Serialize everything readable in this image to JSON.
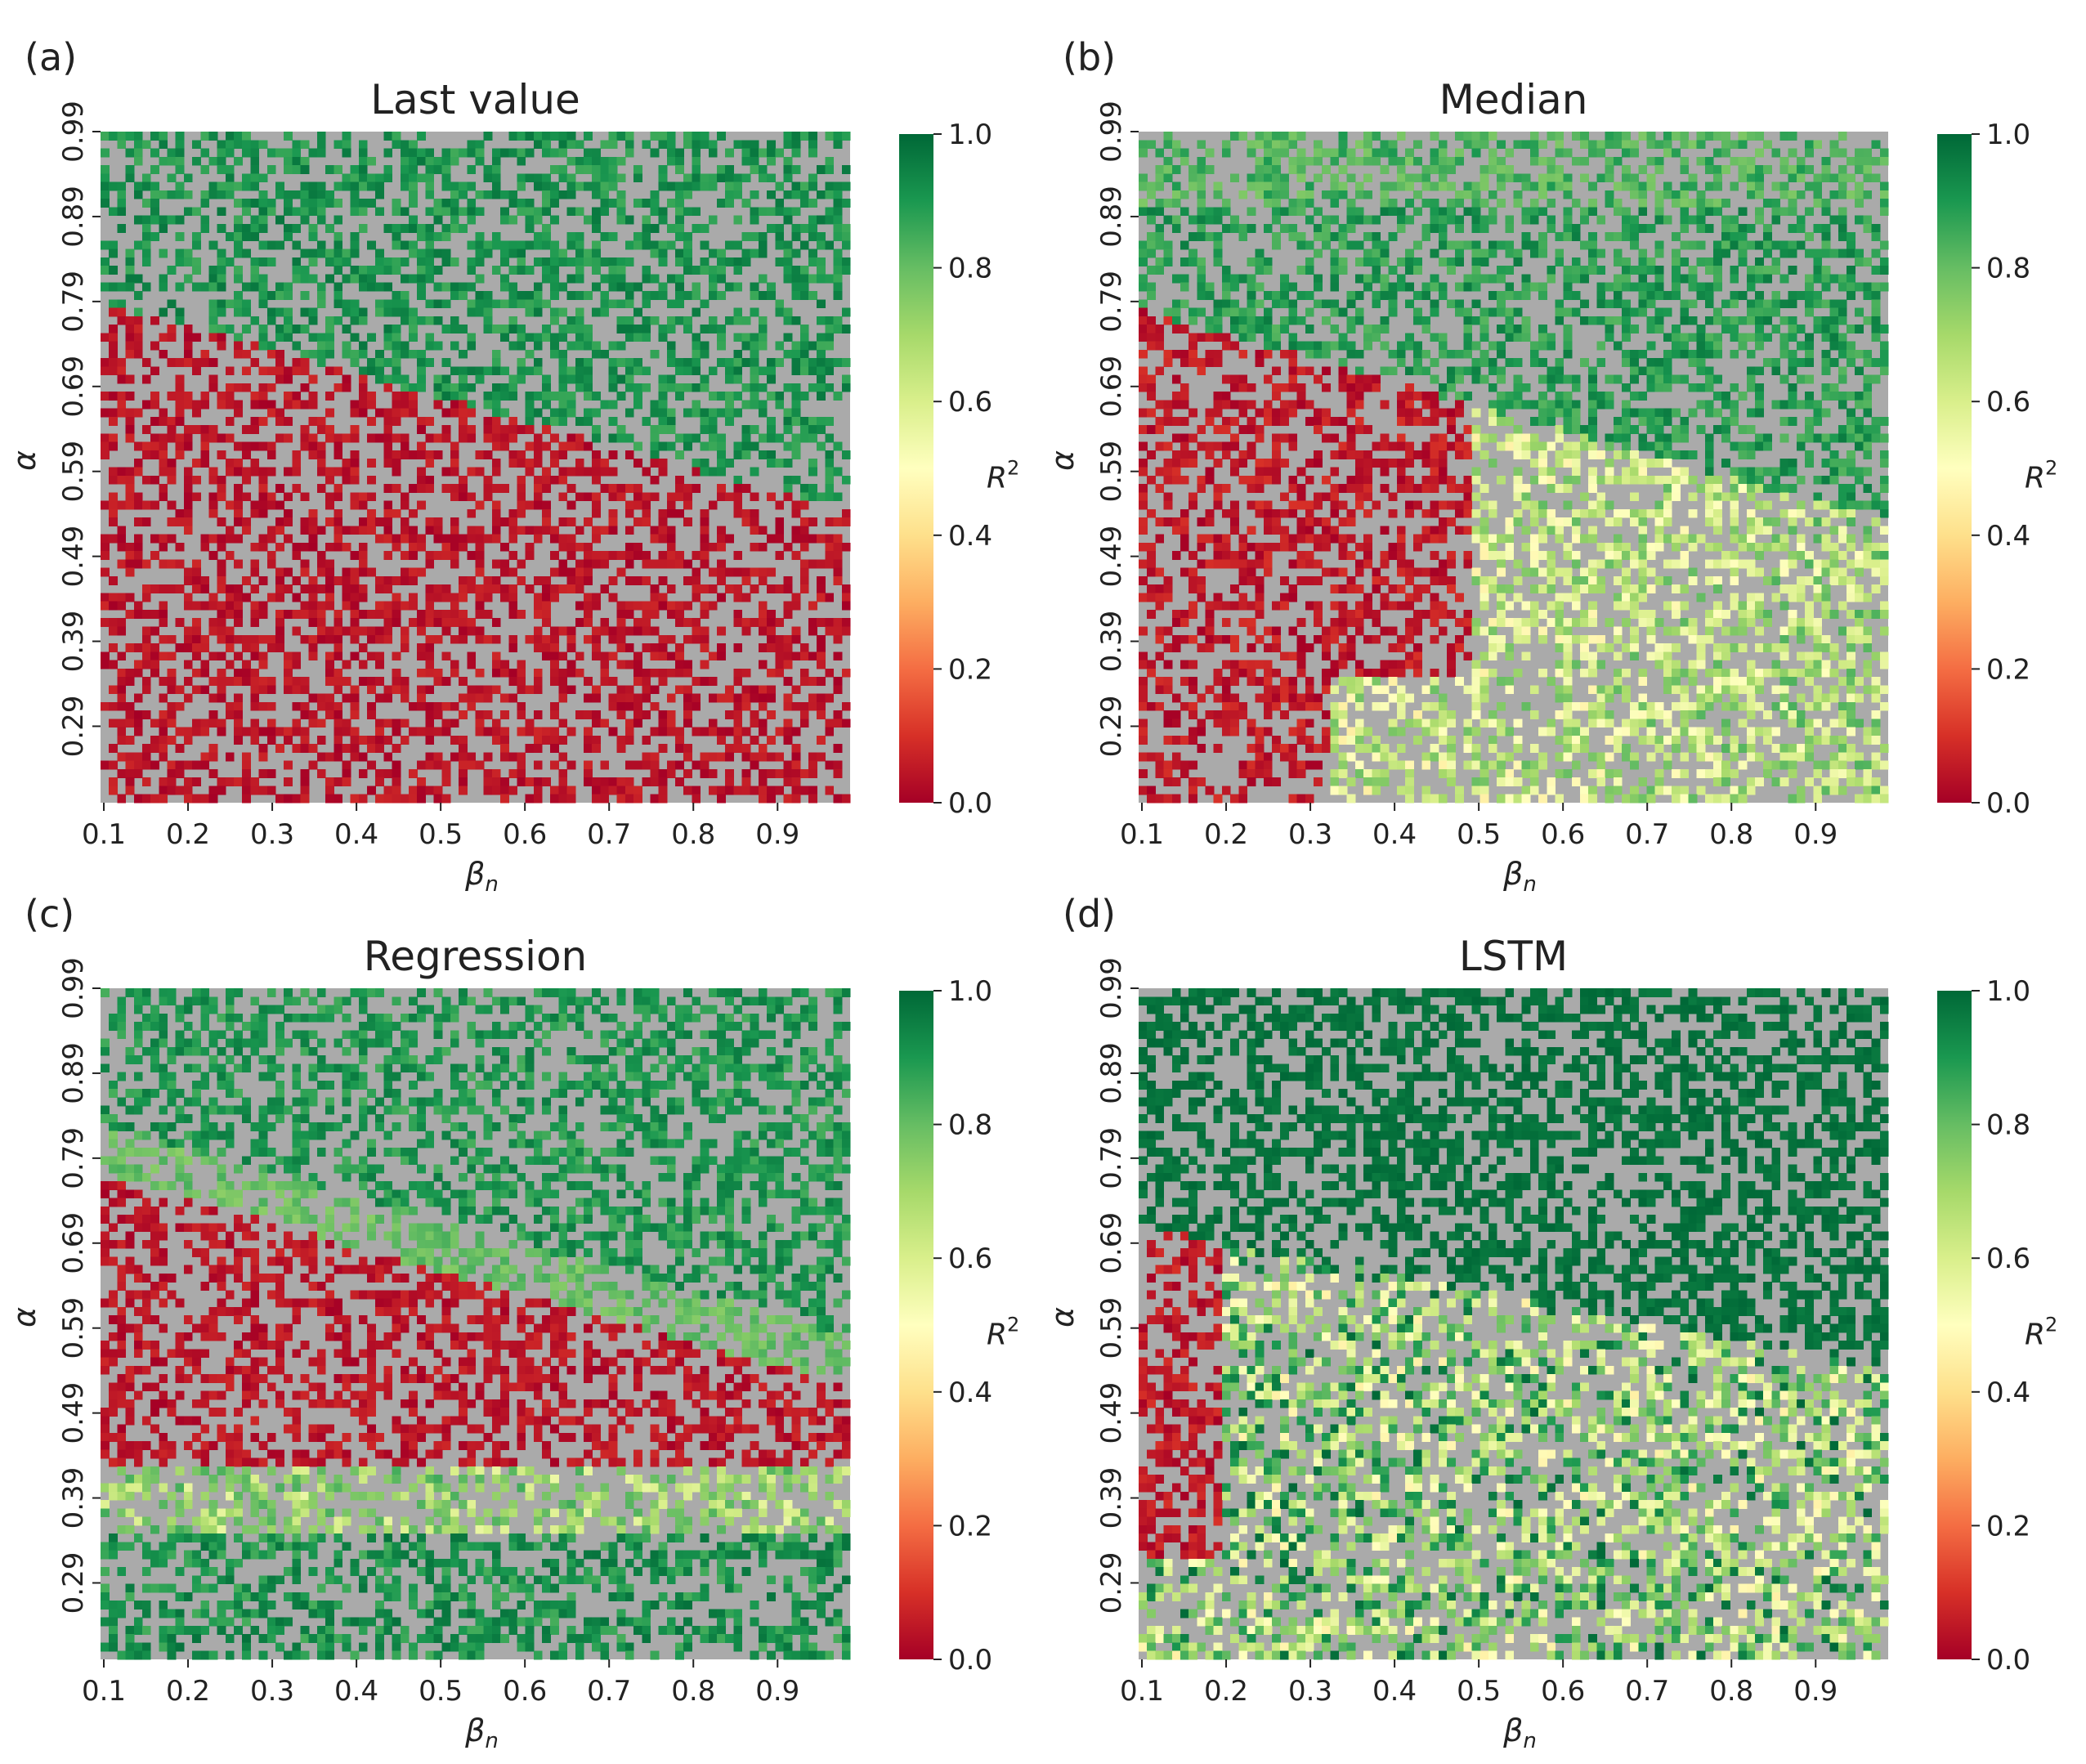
{
  "figure": {
    "background": "#ffffff",
    "missing_color": "#aaaaaa",
    "colormap": {
      "name": "RdYlGn",
      "stops": [
        "#a50026",
        "#d73027",
        "#f46d43",
        "#fdae61",
        "#fee08b",
        "#ffffbf",
        "#d9ef8b",
        "#a6d96a",
        "#66bd63",
        "#1a9850",
        "#006837"
      ]
    }
  },
  "chart_data": [
    {
      "type": "heatmap",
      "panel_label": "(a)",
      "title": "Last value",
      "xlabel": "β",
      "xlabel_sub": "n",
      "ylabel": "α",
      "xticks": [
        "0.1",
        "0.2",
        "0.3",
        "0.4",
        "0.5",
        "0.6",
        "0.7",
        "0.8",
        "0.9"
      ],
      "yticks": [
        "0.99",
        "0.89",
        "0.79",
        "0.69",
        "0.59",
        "0.49",
        "0.39",
        "0.29"
      ],
      "x_range": [
        0.1,
        0.99
      ],
      "y_range": [
        0.2,
        0.99
      ],
      "grid_cells": [
        90,
        80
      ],
      "missing_fraction": 0.5,
      "colorbar": {
        "label": "R",
        "label_sup": "2",
        "ticks": [
          "0.0",
          "0.2",
          "0.4",
          "0.6",
          "0.8",
          "1.0"
        ],
        "range": [
          0.0,
          1.0
        ]
      },
      "regions": "R² ≈ 0.85–0.97 above a boundary falling from α≈0.79 at β=0.1 to α≈0.54 at β=0.99; R² ≈ 0.0–0.1 below"
    },
    {
      "type": "heatmap",
      "panel_label": "(b)",
      "title": "Median",
      "xlabel": "β",
      "xlabel_sub": "n",
      "ylabel": "α",
      "xticks": [
        "0.1",
        "0.2",
        "0.3",
        "0.4",
        "0.5",
        "0.6",
        "0.7",
        "0.8",
        "0.9"
      ],
      "yticks": [
        "0.99",
        "0.89",
        "0.79",
        "0.69",
        "0.59",
        "0.49",
        "0.39",
        "0.29"
      ],
      "x_range": [
        0.1,
        0.99
      ],
      "y_range": [
        0.2,
        0.99
      ],
      "grid_cells": [
        90,
        80
      ],
      "missing_fraction": 0.5,
      "colorbar": {
        "label": "R",
        "label_sup": "2",
        "ticks": [
          "0.0",
          "0.2",
          "0.4",
          "0.6",
          "0.8",
          "1.0"
        ],
        "range": [
          0.0,
          1.0
        ]
      },
      "regions": "R² ≈ 0.8–0.95 above the diagonal boundary (0.75–0.85 near top); R² ≈ 0.0–0.1 lower-left; R² ≈ 0.5–0.8 lower-right"
    },
    {
      "type": "heatmap",
      "panel_label": "(c)",
      "title": "Regression",
      "xlabel": "β",
      "xlabel_sub": "n",
      "ylabel": "α",
      "xticks": [
        "0.1",
        "0.2",
        "0.3",
        "0.4",
        "0.5",
        "0.6",
        "0.7",
        "0.8",
        "0.9"
      ],
      "yticks": [
        "0.99",
        "0.89",
        "0.79",
        "0.69",
        "0.59",
        "0.49",
        "0.39",
        "0.29"
      ],
      "x_range": [
        0.1,
        0.99
      ],
      "y_range": [
        0.2,
        0.99
      ],
      "grid_cells": [
        90,
        80
      ],
      "missing_fraction": 0.5,
      "colorbar": {
        "label": "R",
        "label_sup": "2",
        "ticks": [
          "0.0",
          "0.2",
          "0.4",
          "0.6",
          "0.8",
          "1.0"
        ],
        "range": [
          0.0,
          1.0
        ]
      },
      "regions": "R² ≈ 0.85–0.95 upper region with 0.75–0.82 band along the boundary; R² ≈ 0.0–0.1 band between α≈0.37 and the boundary; R² ≈ 0.6–0.8 band near α≈0.35–0.41; R² ≈ 0.88–0.97 for α<0.35"
    },
    {
      "type": "heatmap",
      "panel_label": "(d)",
      "title": "LSTM",
      "xlabel": "β",
      "xlabel_sub": "n",
      "ylabel": "α",
      "xticks": [
        "0.1",
        "0.2",
        "0.3",
        "0.4",
        "0.5",
        "0.6",
        "0.7",
        "0.8",
        "0.9"
      ],
      "yticks": [
        "0.99",
        "0.89",
        "0.79",
        "0.69",
        "0.59",
        "0.49",
        "0.39",
        "0.29"
      ],
      "x_range": [
        0.1,
        0.99
      ],
      "y_range": [
        0.2,
        0.99
      ],
      "grid_cells": [
        90,
        80
      ],
      "missing_fraction": 0.5,
      "colorbar": {
        "label": "R",
        "label_sup": "2",
        "ticks": [
          "0.0",
          "0.2",
          "0.4",
          "0.6",
          "0.8",
          "1.0"
        ],
        "range": [
          0.0,
          1.0
        ]
      },
      "regions": "R² ≈ 0.96–1.0 above the boundary; R² ≈ 0.0–0.1 lower-left corner; mixed R² ≈ 0.5–0.95 elsewhere below"
    }
  ]
}
